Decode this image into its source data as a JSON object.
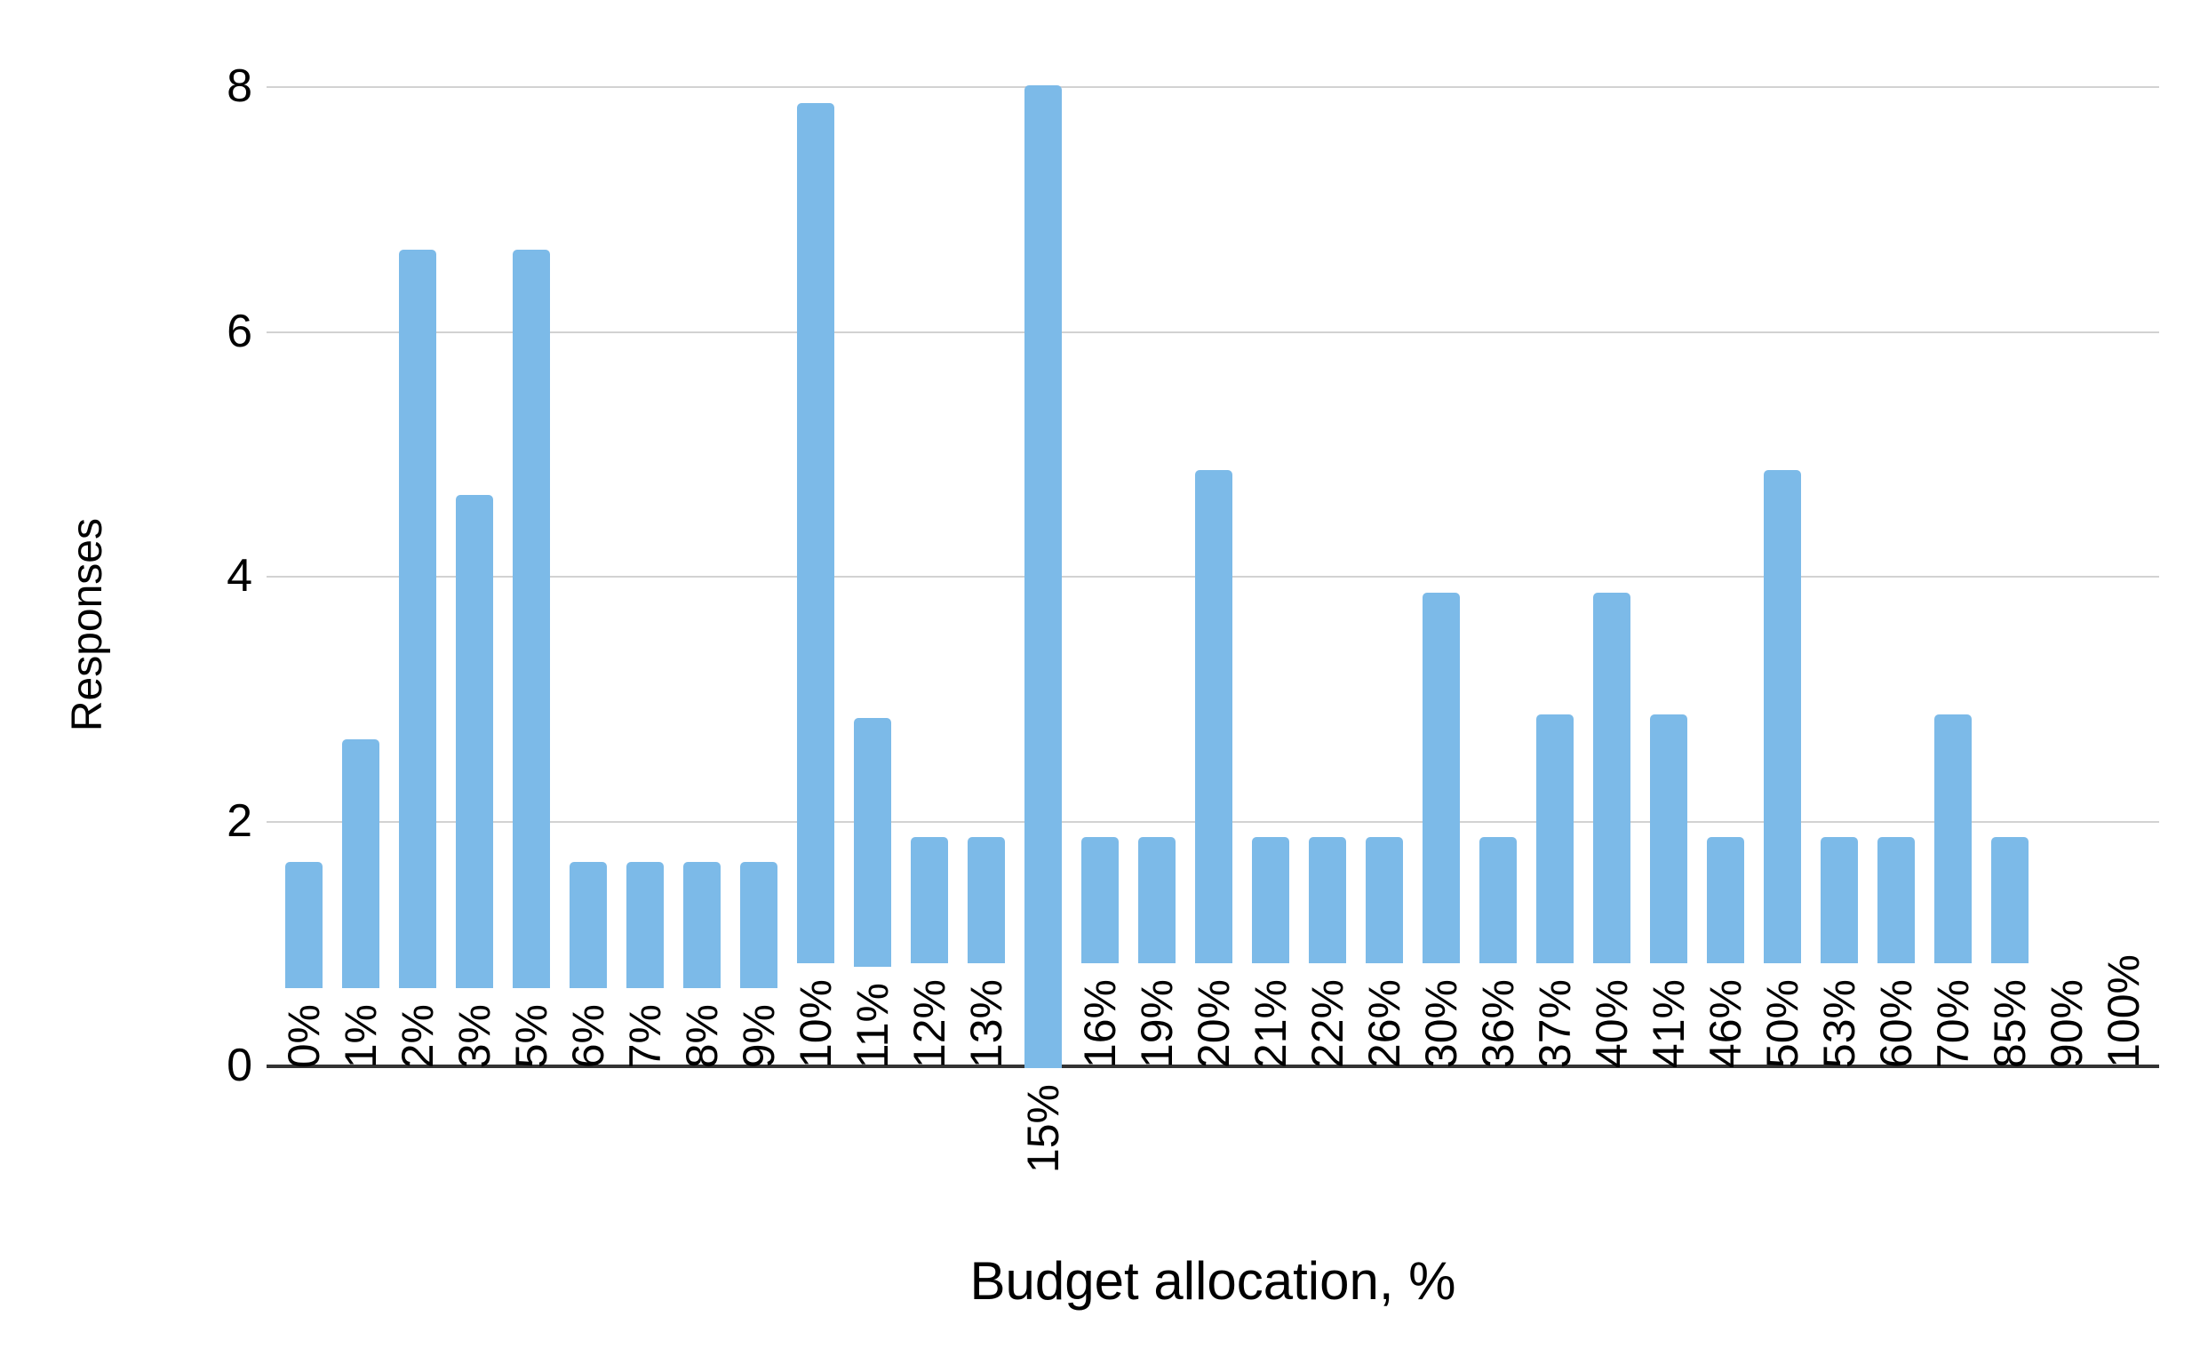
{
  "chart_data": {
    "type": "bar",
    "title": "",
    "xlabel": "Budget allocation, %",
    "ylabel": "Responses",
    "categories": [
      "0%",
      "1%",
      "2%",
      "3%",
      "5%",
      "6%",
      "7%",
      "8%",
      "9%",
      "10%",
      "11%",
      "12%",
      "13%",
      "15%",
      "16%",
      "19%",
      "20%",
      "21%",
      "22%",
      "26%",
      "30%",
      "36%",
      "37%",
      "40%",
      "41%",
      "46%",
      "50%",
      "53%",
      "60%",
      "70%",
      "85%",
      "90%",
      "100%"
    ],
    "values": [
      1,
      2,
      6,
      4,
      6,
      1,
      1,
      1,
      1,
      7,
      2,
      1,
      1,
      8,
      1,
      1,
      4,
      1,
      1,
      1,
      3,
      1,
      2,
      3,
      2,
      1,
      4,
      1,
      1,
      2,
      1,
      0,
      0
    ],
    "ylim": [
      0,
      8
    ],
    "y_ticks": [
      0,
      2,
      4,
      6,
      8
    ],
    "grid": true,
    "legend": "none",
    "bar_color": "#7cbae8",
    "gridline_color": "#d2d2d2",
    "axis_line_color": "#333333",
    "text_color": "#000000"
  }
}
